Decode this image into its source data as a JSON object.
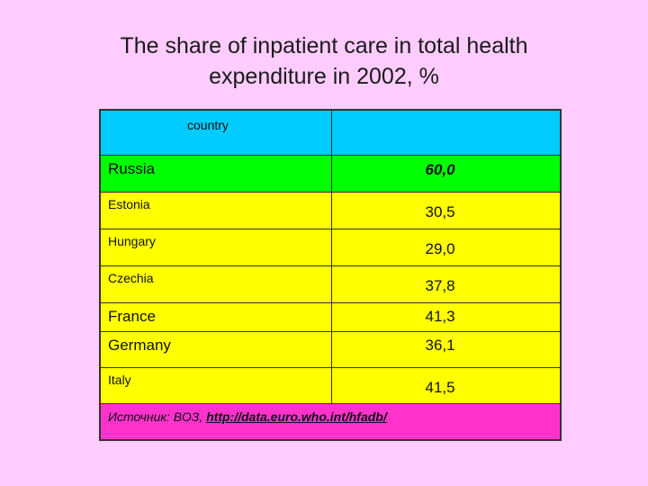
{
  "title": {
    "line1": "The share of inpatient care in total health",
    "line2": "expenditure in 2002, %"
  },
  "table": {
    "header": {
      "country": "country",
      "value": ""
    },
    "rows": [
      {
        "country": "Russia",
        "value": "60,0"
      },
      {
        "country": "Estonia",
        "value": "30,5"
      },
      {
        "country": "Hungary",
        "value": "29,0"
      },
      {
        "country": "Czechia",
        "value": "37,8"
      },
      {
        "country": "France",
        "value": "41,3"
      },
      {
        "country": "Germany",
        "value": "36,1"
      },
      {
        "country": "Italy",
        "value": "41,5"
      }
    ],
    "source": {
      "label": "Источник: ВОЗ, ",
      "link": "http://data.euro.who.int/hfadb/"
    }
  },
  "colors": {
    "background": "#ffccff",
    "header": "#00ccff",
    "highlight_row": "#00ff00",
    "rows": "#ffff00",
    "footer": "#ff33cc"
  }
}
